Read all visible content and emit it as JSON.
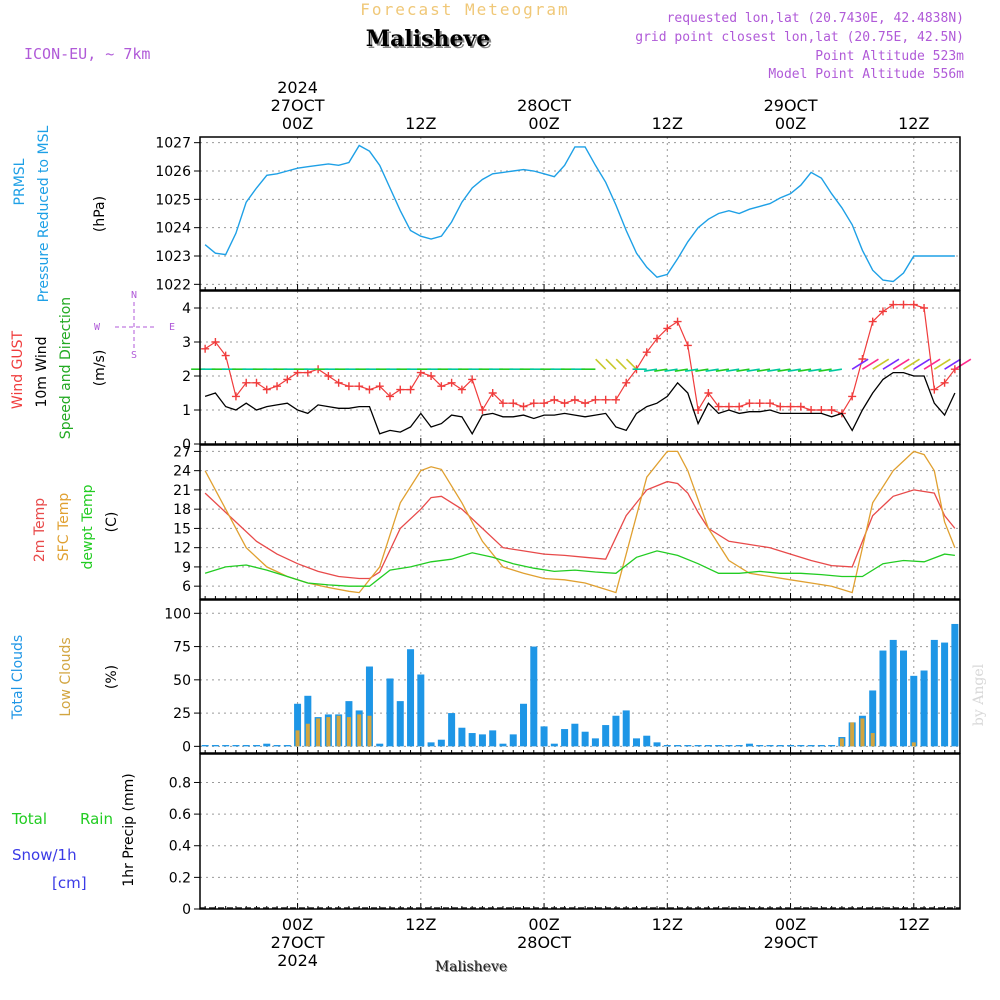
{
  "header": {
    "product": "Forecast Meteogram",
    "station": "Malisheve",
    "model": "ICON-EU, ~ 7km",
    "requested": "requested lon,lat (20.7430E, 42.4838N)",
    "grid_point": "grid point closest lon,lat (20.75E, 42.5N)",
    "point_altitude": "Point Altitude 523m",
    "model_altitude": "Model Point Altitude 556m",
    "footer_station": "Malisheve",
    "watermark": "by Angel"
  },
  "time_axis": {
    "top_labels": [
      {
        "lines": [
          "2024",
          "27OCT",
          "00Z"
        ]
      },
      {
        "lines": [
          "12Z"
        ]
      },
      {
        "lines": [
          "28OCT",
          "00Z"
        ]
      },
      {
        "lines": [
          "12Z"
        ]
      },
      {
        "lines": [
          "29OCT",
          "00Z"
        ]
      },
      {
        "lines": [
          "12Z"
        ]
      }
    ],
    "bottom_labels": [
      {
        "lines": [
          "00Z",
          "27OCT",
          "2024"
        ]
      },
      {
        "lines": [
          "12Z"
        ]
      },
      {
        "lines": [
          "00Z",
          "28OCT"
        ]
      },
      {
        "lines": [
          "12Z"
        ]
      },
      {
        "lines": [
          "00Z",
          "29OCT"
        ]
      },
      {
        "lines": [
          "12Z"
        ]
      }
    ]
  },
  "panel_labels": {
    "pressure": {
      "line1": "PRMSL",
      "line2": "Pressure Reduced to MSL",
      "unit": "(hPa)"
    },
    "wind": {
      "gust": "Wind GUST",
      "wind10": "10m Wind",
      "dir": "Speed and Direction",
      "unit": "(m/s)",
      "compass": {
        "n": "N",
        "s": "S",
        "w": "W",
        "e": "E"
      }
    },
    "temp": {
      "t2m": "2m Temp",
      "sfc": "SFC Temp",
      "dew": "dewpt Temp",
      "unit": "(C)"
    },
    "clouds": {
      "total": "Total Clouds",
      "low": "Low Clouds",
      "unit": "(%)"
    },
    "precip": {
      "rain1": "Total",
      "rain2": "Rain",
      "snow1": "Snow/1h",
      "snow2": "[cm]",
      "title": "1hr Precip (mm)"
    }
  },
  "colors": {
    "pressure": "#1ea0e6",
    "gust": "#f03c3c",
    "wind": "#000000",
    "t2m": "#e84a4a",
    "sfc": "#e0a030",
    "dew": "#22cc22",
    "total_clouds": "#1e96e6",
    "low_clouds": "#d2a540",
    "rain": "#22cc22",
    "snow": "#3a3ae6",
    "title": "#f0c878",
    "meta": "#b05ad8"
  },
  "chart_data": [
    {
      "type": "line",
      "id": "pressure",
      "ylabel": "(hPa)",
      "ylim": [
        1021.8,
        1027.2
      ],
      "yticks": [
        1022,
        1023,
        1024,
        1025,
        1026,
        1027
      ],
      "series": [
        {
          "name": "PRMSL",
          "x": [
            -9,
            -8,
            -7,
            -6,
            -5,
            -4,
            -3,
            -2,
            -1,
            0,
            1,
            2,
            3,
            4,
            5,
            6,
            7,
            8,
            9,
            10,
            11,
            12,
            13,
            14,
            15,
            16,
            17,
            18,
            19,
            20,
            21,
            22,
            23,
            24,
            25,
            26,
            27,
            28,
            29,
            30,
            31,
            32,
            33,
            34,
            35,
            36,
            37,
            38,
            39,
            40,
            41,
            42,
            43,
            44,
            45,
            46,
            47,
            48,
            49,
            50,
            51,
            52,
            53,
            54,
            55,
            56,
            57,
            58,
            59,
            60,
            61,
            62,
            63,
            64
          ],
          "y": [
            1023.4,
            1023.1,
            1023.05,
            1023.8,
            1024.9,
            1025.4,
            1025.85,
            1025.9,
            1026.0,
            1026.1,
            1026.15,
            1026.2,
            1026.25,
            1026.2,
            1026.3,
            1026.9,
            1026.7,
            1026.2,
            1025.4,
            1024.6,
            1023.9,
            1023.7,
            1023.6,
            1023.7,
            1024.2,
            1024.9,
            1025.4,
            1025.7,
            1025.9,
            1025.95,
            1026.0,
            1026.05,
            1026.0,
            1025.9,
            1025.8,
            1026.2,
            1026.85,
            1026.85,
            1026.2,
            1025.6,
            1024.8,
            1023.9,
            1023.1,
            1022.6,
            1022.25,
            1022.35,
            1022.9,
            1023.5,
            1024.0,
            1024.3,
            1024.5,
            1024.6,
            1024.5,
            1024.65,
            1024.75,
            1024.85,
            1025.05,
            1025.2,
            1025.5,
            1025.95,
            1025.75,
            1025.2,
            1024.7,
            1024.1,
            1023.2,
            1022.5,
            1022.15,
            1022.1,
            1022.4,
            1023.0,
            1023.0,
            1023.0,
            1023.0,
            1023.0
          ]
        }
      ]
    },
    {
      "type": "line",
      "id": "wind",
      "ylabel": "(m/s)",
      "ylim": [
        0,
        4.5
      ],
      "yticks": [
        0,
        1,
        2,
        3,
        4
      ],
      "series": [
        {
          "name": "Wind GUST",
          "x": [
            -9,
            -8,
            -7,
            -6,
            -5,
            -4,
            -3,
            -2,
            -1,
            0,
            1,
            2,
            3,
            4,
            5,
            6,
            7,
            8,
            9,
            10,
            11,
            12,
            13,
            14,
            15,
            16,
            17,
            18,
            19,
            20,
            21,
            22,
            23,
            24,
            25,
            26,
            27,
            28,
            29,
            30,
            31,
            32,
            33,
            34,
            35,
            36,
            37,
            38,
            39,
            40,
            41,
            42,
            43,
            44,
            45,
            46,
            47,
            48,
            49,
            50,
            51,
            52,
            53,
            54,
            55,
            56,
            57,
            58,
            59,
            60,
            61,
            62,
            63,
            64
          ],
          "y": [
            2.8,
            3.0,
            2.6,
            1.4,
            1.8,
            1.8,
            1.6,
            1.7,
            1.9,
            2.1,
            2.1,
            2.2,
            2.0,
            1.8,
            1.7,
            1.7,
            1.6,
            1.7,
            1.4,
            1.6,
            1.6,
            2.1,
            2.0,
            1.7,
            1.8,
            1.6,
            1.9,
            1.0,
            1.5,
            1.2,
            1.2,
            1.1,
            1.2,
            1.2,
            1.3,
            1.2,
            1.3,
            1.2,
            1.3,
            1.3,
            1.3,
            1.8,
            2.2,
            2.7,
            3.1,
            3.4,
            3.6,
            2.9,
            1.0,
            1.5,
            1.1,
            1.1,
            1.1,
            1.2,
            1.2,
            1.2,
            1.1,
            1.1,
            1.1,
            1.0,
            1.0,
            1.0,
            0.9,
            1.4,
            2.5,
            3.6,
            3.9,
            4.1,
            4.1,
            4.1,
            4.0,
            1.6,
            1.8,
            2.2
          ]
        },
        {
          "name": "10m Wind",
          "x": [
            -9,
            -8,
            -7,
            -6,
            -5,
            -4,
            -3,
            -2,
            -1,
            0,
            1,
            2,
            3,
            4,
            5,
            6,
            7,
            8,
            9,
            10,
            11,
            12,
            13,
            14,
            15,
            16,
            17,
            18,
            19,
            20,
            21,
            22,
            23,
            24,
            25,
            26,
            27,
            28,
            29,
            30,
            31,
            32,
            33,
            34,
            35,
            36,
            37,
            38,
            39,
            40,
            41,
            42,
            43,
            44,
            45,
            46,
            47,
            48,
            49,
            50,
            51,
            52,
            53,
            54,
            55,
            56,
            57,
            58,
            59,
            60,
            61,
            62,
            63,
            64
          ],
          "y": [
            1.4,
            1.5,
            1.1,
            1.0,
            1.2,
            1.0,
            1.1,
            1.15,
            1.2,
            1.0,
            0.9,
            1.15,
            1.1,
            1.05,
            1.05,
            1.1,
            1.1,
            0.3,
            0.4,
            0.35,
            0.5,
            0.9,
            0.5,
            0.6,
            0.85,
            0.8,
            0.3,
            0.85,
            0.9,
            0.8,
            0.8,
            0.85,
            0.75,
            0.85,
            0.85,
            0.9,
            0.85,
            0.8,
            0.85,
            0.9,
            0.5,
            0.4,
            0.9,
            1.1,
            1.2,
            1.4,
            1.8,
            1.5,
            0.6,
            1.2,
            0.9,
            1.0,
            0.9,
            0.95,
            0.95,
            1.0,
            0.9,
            0.9,
            0.9,
            0.9,
            0.9,
            0.8,
            0.9,
            0.4,
            1.0,
            1.5,
            1.9,
            2.1,
            2.1,
            2.0,
            2.0,
            1.2,
            0.85,
            1.5
          ]
        }
      ]
    },
    {
      "type": "line",
      "id": "temperature",
      "ylabel": "(C)",
      "ylim": [
        4,
        28
      ],
      "yticks": [
        6,
        9,
        12,
        15,
        18,
        21,
        24,
        27
      ],
      "series": [
        {
          "name": "2m Temp",
          "x": [
            -9,
            -6,
            -4,
            -2,
            0,
            2,
            4,
            6,
            7,
            8,
            10,
            12,
            13,
            14,
            16,
            18,
            20,
            22,
            24,
            26,
            28,
            30,
            32,
            34,
            36,
            37,
            38,
            39,
            40,
            42,
            44,
            46,
            48,
            50,
            52,
            54,
            56,
            58,
            60,
            62,
            63,
            64
          ],
          "y": [
            20.5,
            16.0,
            13.0,
            11.0,
            9.5,
            8.3,
            7.5,
            7.2,
            7.2,
            8.2,
            15.0,
            18.0,
            19.8,
            20.0,
            18.0,
            15.0,
            12.0,
            11.5,
            11.0,
            10.8,
            10.5,
            10.2,
            17.0,
            21.0,
            22.3,
            22.0,
            20.5,
            17.5,
            15.0,
            13.0,
            12.5,
            12.0,
            11.0,
            10.0,
            9.2,
            9.0,
            17.0,
            20.0,
            21.0,
            20.5,
            17.0,
            15.0
          ]
        },
        {
          "name": "SFC Temp",
          "x": [
            -9,
            -7,
            -5,
            -3,
            -1,
            1,
            3,
            5,
            6,
            8,
            10,
            12,
            13,
            14,
            16,
            18,
            20,
            22,
            24,
            26,
            28,
            30,
            31,
            32,
            34,
            36,
            37,
            38,
            40,
            42,
            44,
            46,
            48,
            50,
            52,
            53,
            54,
            56,
            58,
            60,
            61,
            62,
            63,
            64
          ],
          "y": [
            24.0,
            18.0,
            12.0,
            9.0,
            7.5,
            6.5,
            5.8,
            5.2,
            5.0,
            9.0,
            19.0,
            24.0,
            24.6,
            24.2,
            19.0,
            13.0,
            9.0,
            8.0,
            7.2,
            7.0,
            6.5,
            5.5,
            5.0,
            11.0,
            23.0,
            27.0,
            27.0,
            24.0,
            15.0,
            10.0,
            8.0,
            7.5,
            7.0,
            6.5,
            6.0,
            5.5,
            5.0,
            19.0,
            24.0,
            27.0,
            26.5,
            24.0,
            16.0,
            12.0
          ]
        },
        {
          "name": "dewpt Temp",
          "x": [
            -9,
            -7,
            -5,
            -3,
            -1,
            1,
            3,
            5,
            7,
            9,
            11,
            13,
            15,
            17,
            19,
            21,
            23,
            25,
            27,
            29,
            31,
            33,
            35,
            37,
            39,
            41,
            43,
            45,
            47,
            49,
            51,
            53,
            55,
            57,
            59,
            61,
            63,
            64
          ],
          "y": [
            8.0,
            9.0,
            9.3,
            8.5,
            7.5,
            6.5,
            6.2,
            6.0,
            6.0,
            8.5,
            9.0,
            9.8,
            10.2,
            11.2,
            10.5,
            9.5,
            8.8,
            8.3,
            8.5,
            8.2,
            8.0,
            10.5,
            11.5,
            10.8,
            9.5,
            8.0,
            8.0,
            8.3,
            8.0,
            8.0,
            7.8,
            7.5,
            7.5,
            9.5,
            10.0,
            9.8,
            11.0,
            10.8
          ]
        }
      ]
    },
    {
      "type": "bar",
      "id": "clouds",
      "ylabel": "(%)",
      "ylim": [
        -5,
        110
      ],
      "yticks": [
        0,
        25,
        50,
        75,
        100
      ],
      "x": [
        -9,
        -8,
        -7,
        -6,
        -5,
        -4,
        -3,
        -2,
        -1,
        0,
        1,
        2,
        3,
        4,
        5,
        6,
        7,
        8,
        9,
        10,
        11,
        12,
        13,
        14,
        15,
        16,
        17,
        18,
        19,
        20,
        21,
        22,
        23,
        24,
        25,
        26,
        27,
        28,
        29,
        30,
        31,
        32,
        33,
        34,
        35,
        36,
        37,
        38,
        39,
        40,
        41,
        42,
        43,
        44,
        45,
        46,
        47,
        48,
        49,
        50,
        51,
        52,
        53,
        54,
        55,
        56,
        57,
        58,
        59,
        60,
        61,
        62,
        63,
        64
      ],
      "series": [
        {
          "name": "Total Clouds",
          "values": [
            1,
            1,
            1,
            1,
            1,
            1,
            2,
            1,
            1,
            32,
            38,
            22,
            24,
            24,
            34,
            27,
            60,
            2,
            51,
            34,
            73,
            54,
            3,
            5,
            25,
            14,
            10,
            9,
            12,
            2,
            9,
            32,
            75,
            15,
            2,
            13,
            17,
            11,
            6,
            16,
            23,
            27,
            6,
            8,
            3,
            1,
            1,
            1,
            1,
            1,
            1,
            1,
            1,
            2,
            1,
            1,
            1,
            1,
            1,
            1,
            1,
            1,
            7,
            18,
            23,
            42,
            72,
            80,
            72,
            53,
            57,
            80,
            78,
            92
          ]
        },
        {
          "name": "Low Clouds",
          "values": [
            0,
            0,
            0,
            0,
            0,
            0,
            0,
            0,
            0,
            12,
            17,
            21,
            22,
            23,
            22,
            24,
            23,
            0,
            0,
            0,
            0,
            0,
            0,
            0,
            0,
            0,
            0,
            0,
            0,
            0,
            0,
            0,
            0,
            0,
            0,
            0,
            0,
            0,
            0,
            0,
            0,
            0,
            0,
            0,
            0,
            0,
            0,
            0,
            0,
            0,
            0,
            0,
            0,
            0,
            0,
            0,
            0,
            0,
            0,
            0,
            0,
            0,
            6,
            18,
            21,
            10,
            0,
            0,
            0,
            3,
            0,
            0,
            0,
            0
          ]
        }
      ]
    },
    {
      "type": "bar",
      "id": "precip",
      "ylabel": "1hr Precip (mm)",
      "ylim": [
        0,
        0.98
      ],
      "yticks": [
        0,
        0.2,
        0.4,
        0.6,
        0.8
      ],
      "series": [
        {
          "name": "Total Rain",
          "values": []
        },
        {
          "name": "Snow/1h",
          "values": []
        }
      ]
    }
  ]
}
